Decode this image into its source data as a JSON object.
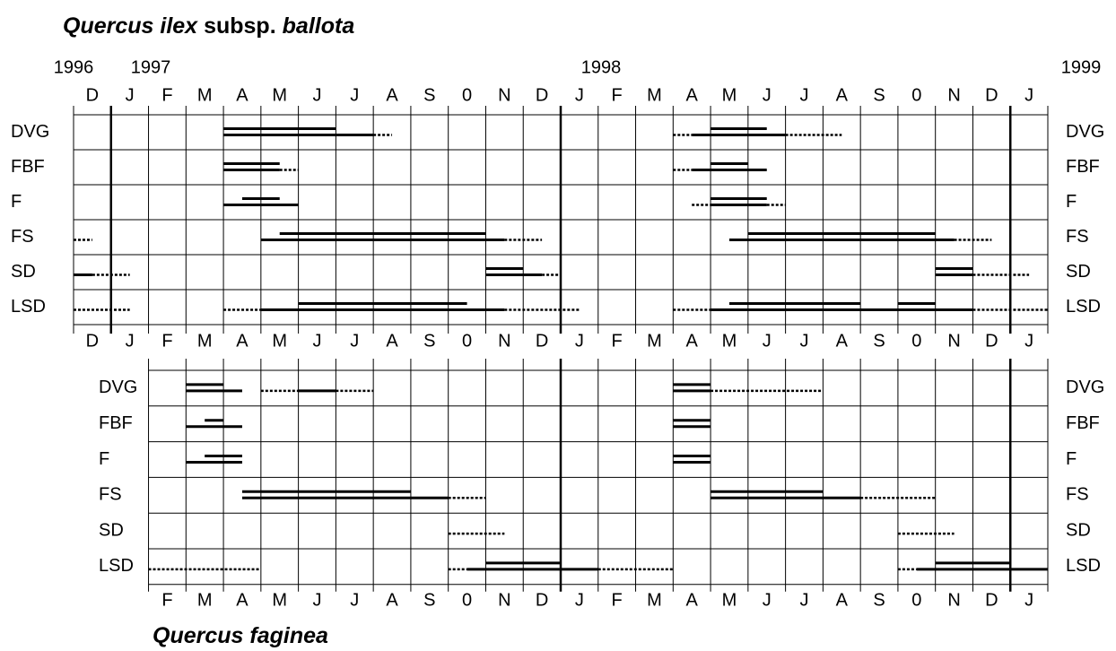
{
  "years": [
    "1996",
    "1997",
    "1998",
    "1999"
  ],
  "panels": [
    {
      "title": [
        {
          "text": "Quercus ilex",
          "italic": true
        },
        {
          "text": "subsp.",
          "italic": false
        },
        {
          "text": "ballota",
          "italic": true
        }
      ],
      "months": [
        "D",
        "J",
        "F",
        "M",
        "A",
        "M",
        "J",
        "J",
        "A",
        "S",
        "0",
        "N",
        "D",
        "J",
        "F",
        "M",
        "A",
        "M",
        "J",
        "J",
        "A",
        "S",
        "0",
        "N",
        "D",
        "J"
      ],
      "rows": [
        {
          "label": "DVG",
          "segments": [
            {
              "from": 4,
              "to": 7,
              "line": "upper"
            },
            {
              "from": 4,
              "to": 8,
              "line": "lower"
            },
            {
              "from": 8,
              "to": 8.5,
              "line": "dotted"
            },
            {
              "from": 16,
              "to": 16.5,
              "line": "dotted"
            },
            {
              "from": 16.5,
              "to": 19,
              "line": "lower"
            },
            {
              "from": 17,
              "to": 18.5,
              "line": "upper"
            },
            {
              "from": 19,
              "to": 20.5,
              "line": "dotted"
            }
          ]
        },
        {
          "label": "FBF",
          "segments": [
            {
              "from": 4,
              "to": 5.5,
              "line": "upper"
            },
            {
              "from": 4,
              "to": 5.5,
              "line": "lower"
            },
            {
              "from": 5.5,
              "to": 6,
              "line": "dotted"
            },
            {
              "from": 16,
              "to": 16.5,
              "line": "dotted"
            },
            {
              "from": 16.5,
              "to": 18.5,
              "line": "lower"
            },
            {
              "from": 17,
              "to": 18,
              "line": "upper"
            }
          ]
        },
        {
          "label": "F",
          "segments": [
            {
              "from": 4.5,
              "to": 5.5,
              "line": "upper"
            },
            {
              "from": 4,
              "to": 6,
              "line": "lower"
            },
            {
              "from": 16.5,
              "to": 17,
              "line": "dotted"
            },
            {
              "from": 17,
              "to": 18.5,
              "line": "upper"
            },
            {
              "from": 17,
              "to": 18.5,
              "line": "lower"
            },
            {
              "from": 18.5,
              "to": 19,
              "line": "dotted"
            }
          ]
        },
        {
          "label": "FS",
          "segments": [
            {
              "from": 0,
              "to": 0.5,
              "line": "dotted"
            },
            {
              "from": 5,
              "to": 11.5,
              "line": "lower"
            },
            {
              "from": 5.5,
              "to": 11,
              "line": "upper"
            },
            {
              "from": 11.5,
              "to": 12.5,
              "line": "dotted"
            },
            {
              "from": 17.5,
              "to": 23.5,
              "line": "lower"
            },
            {
              "from": 18,
              "to": 23,
              "line": "upper"
            },
            {
              "from": 23.5,
              "to": 24.5,
              "line": "dotted"
            }
          ]
        },
        {
          "label": "SD",
          "segments": [
            {
              "from": 0,
              "to": 0.5,
              "line": "lower"
            },
            {
              "from": 0.5,
              "to": 1.5,
              "line": "dotted"
            },
            {
              "from": 11,
              "to": 12,
              "line": "upper"
            },
            {
              "from": 11,
              "to": 12.5,
              "line": "lower"
            },
            {
              "from": 12.5,
              "to": 13,
              "line": "dotted"
            },
            {
              "from": 23,
              "to": 24,
              "line": "upper"
            },
            {
              "from": 23,
              "to": 24,
              "line": "lower"
            },
            {
              "from": 24,
              "to": 25.5,
              "line": "dotted"
            }
          ]
        },
        {
          "label": "LSD",
          "segments": [
            {
              "from": 0,
              "to": 1.5,
              "line": "dotted"
            },
            {
              "from": 4,
              "to": 5,
              "line": "dotted"
            },
            {
              "from": 5,
              "to": 11.5,
              "line": "lower"
            },
            {
              "from": 6,
              "to": 10.5,
              "line": "upper"
            },
            {
              "from": 11.5,
              "to": 13.5,
              "line": "dotted"
            },
            {
              "from": 16,
              "to": 17,
              "line": "dotted"
            },
            {
              "from": 17,
              "to": 24,
              "line": "lower"
            },
            {
              "from": 17.5,
              "to": 21,
              "line": "upper"
            },
            {
              "from": 22,
              "to": 23,
              "line": "upper"
            },
            {
              "from": 24,
              "to": 26,
              "line": "dotted"
            }
          ]
        }
      ]
    },
    {
      "title": [
        {
          "text": "Quercus faginea",
          "italic": true
        }
      ],
      "months": [
        "F",
        "M",
        "A",
        "M",
        "J",
        "J",
        "A",
        "S",
        "0",
        "N",
        "D",
        "J",
        "F",
        "M",
        "A",
        "M",
        "J",
        "J",
        "A",
        "S",
        "0",
        "N",
        "D",
        "J"
      ],
      "rows": [
        {
          "label": "DVG",
          "segments": [
            {
              "from": 3,
              "to": 4,
              "line": "upper"
            },
            {
              "from": 3,
              "to": 4.5,
              "line": "lower"
            },
            {
              "from": 5,
              "to": 6,
              "line": "dotted"
            },
            {
              "from": 6,
              "to": 7,
              "line": "lower"
            },
            {
              "from": 7,
              "to": 8,
              "line": "dotted"
            },
            {
              "from": 16,
              "to": 17,
              "line": "upper"
            },
            {
              "from": 16,
              "to": 17,
              "line": "lower"
            },
            {
              "from": 17,
              "to": 20,
              "line": "dotted"
            }
          ]
        },
        {
          "label": "FBF",
          "segments": [
            {
              "from": 3.5,
              "to": 4,
              "line": "upper"
            },
            {
              "from": 3,
              "to": 4.5,
              "line": "lower"
            },
            {
              "from": 16,
              "to": 17,
              "line": "upper"
            },
            {
              "from": 16,
              "to": 17,
              "line": "lower"
            }
          ]
        },
        {
          "label": "F",
          "segments": [
            {
              "from": 3.5,
              "to": 4.5,
              "line": "upper"
            },
            {
              "from": 3,
              "to": 4.5,
              "line": "lower"
            },
            {
              "from": 16,
              "to": 17,
              "line": "upper"
            },
            {
              "from": 16,
              "to": 17,
              "line": "lower"
            }
          ]
        },
        {
          "label": "FS",
          "segments": [
            {
              "from": 4.5,
              "to": 9,
              "line": "upper"
            },
            {
              "from": 4.5,
              "to": 10,
              "line": "lower"
            },
            {
              "from": 10,
              "to": 11,
              "line": "dotted"
            },
            {
              "from": 17,
              "to": 20,
              "line": "upper"
            },
            {
              "from": 17,
              "to": 21,
              "line": "lower"
            },
            {
              "from": 21,
              "to": 23,
              "line": "dotted"
            }
          ]
        },
        {
          "label": "SD",
          "segments": [
            {
              "from": 10,
              "to": 11.5,
              "line": "dotted"
            },
            {
              "from": 22,
              "to": 23.5,
              "line": "dotted"
            }
          ]
        },
        {
          "label": "LSD",
          "segments": [
            {
              "from": 2,
              "to": 5,
              "line": "dotted"
            },
            {
              "from": 10,
              "to": 10.5,
              "line": "dotted"
            },
            {
              "from": 10.5,
              "to": 14,
              "line": "lower"
            },
            {
              "from": 11,
              "to": 13,
              "line": "upper"
            },
            {
              "from": 14,
              "to": 16,
              "line": "dotted"
            },
            {
              "from": 22,
              "to": 22.5,
              "line": "dotted"
            },
            {
              "from": 22.5,
              "to": 26,
              "line": "lower"
            },
            {
              "from": 23,
              "to": 25,
              "line": "upper"
            }
          ]
        }
      ]
    }
  ]
}
